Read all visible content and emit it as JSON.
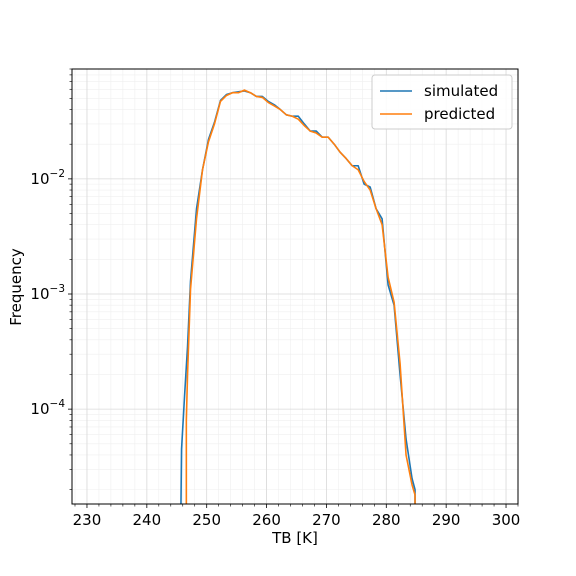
{
  "chart_data": {
    "type": "line",
    "title": "",
    "xlabel": "TB [K]",
    "ylabel": "Frequency",
    "xlim": [
      227.5,
      302
    ],
    "ylim": [
      1.5e-05,
      0.09
    ],
    "yscale": "log",
    "grid": true,
    "legend_position": "top-right",
    "x_ticks": [
      230,
      240,
      250,
      260,
      270,
      280,
      290,
      300
    ],
    "y_ticks": [
      {
        "value": 0.0001,
        "base": "10",
        "exp": "−4"
      },
      {
        "value": 0.001,
        "base": "10",
        "exp": "−3"
      },
      {
        "value": 0.01,
        "base": "10",
        "exp": "−2"
      }
    ],
    "series": [
      {
        "name": "simulated",
        "color": "#1f77b4",
        "x": [
          245.7,
          245.8,
          246.3,
          246.8,
          247.3,
          248.3,
          249.3,
          250.3,
          251.3,
          252.3,
          253.3,
          254.3,
          255.3,
          256.3,
          257.3,
          258.3,
          259.3,
          260.3,
          261.3,
          262.3,
          263.3,
          264.3,
          265.3,
          266.3,
          267.3,
          268.3,
          269.3,
          270.3,
          271.3,
          272.3,
          273.3,
          274.3,
          275.3,
          276.3,
          277.3,
          278.3,
          279.3,
          280.3,
          281.3,
          282.3,
          283.3,
          284.3,
          284.8,
          284.8
        ],
        "values": [
          1.5e-05,
          4.5e-05,
          0.00013,
          0.00035,
          0.0013,
          0.0055,
          0.012,
          0.022,
          0.031,
          0.048,
          0.054,
          0.056,
          0.057,
          0.058,
          0.056,
          0.052,
          0.052,
          0.047,
          0.044,
          0.04,
          0.036,
          0.035,
          0.035,
          0.03,
          0.026,
          0.026,
          0.023,
          0.023,
          0.02,
          0.017,
          0.015,
          0.013,
          0.013,
          0.009,
          0.0085,
          0.0055,
          0.0045,
          0.0012,
          0.0008,
          0.0002,
          5.5e-05,
          2.5e-05,
          2e-05,
          1.5e-05
        ]
      },
      {
        "name": "predicted",
        "color": "#ff7f0e",
        "x": [
          246.6,
          246.6,
          246.8,
          247.3,
          248.3,
          249.3,
          250.3,
          251.3,
          252.3,
          253.3,
          254.3,
          255.3,
          256.3,
          257.3,
          258.3,
          259.3,
          260.3,
          261.3,
          262.3,
          263.3,
          264.3,
          265.3,
          266.3,
          267.3,
          268.3,
          269.3,
          270.3,
          271.3,
          272.3,
          273.3,
          274.3,
          275.3,
          276.3,
          277.3,
          278.3,
          279.3,
          280.3,
          281.3,
          282.3,
          283.3,
          284.3,
          284.8,
          284.8
        ],
        "values": [
          1.5e-05,
          8e-05,
          0.0002,
          0.0011,
          0.0045,
          0.012,
          0.021,
          0.03,
          0.047,
          0.053,
          0.056,
          0.056,
          0.059,
          0.056,
          0.052,
          0.051,
          0.046,
          0.043,
          0.04,
          0.036,
          0.035,
          0.033,
          0.029,
          0.026,
          0.025,
          0.023,
          0.023,
          0.02,
          0.017,
          0.015,
          0.013,
          0.012,
          0.0095,
          0.008,
          0.0055,
          0.004,
          0.0014,
          0.00085,
          0.00025,
          4e-05,
          2.2e-05,
          1.8e-05,
          1.5e-05
        ]
      }
    ]
  }
}
